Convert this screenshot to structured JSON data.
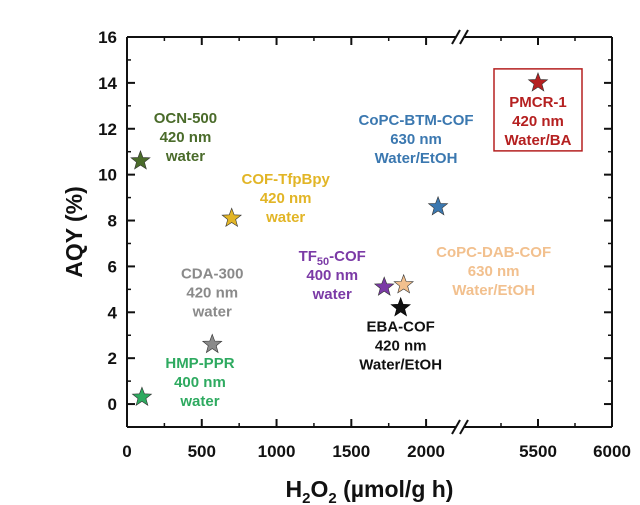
{
  "chart_data": {
    "type": "scatter",
    "xlabel": {
      "main": "H",
      "sub1": "2",
      "mid": "O",
      "sub2": "2",
      "rest": " (µmol/g h)"
    },
    "ylabel": "AQY (%)",
    "xlim_left": [
      0,
      2200
    ],
    "xlim_right": [
      5000,
      6000
    ],
    "ylim": [
      -1,
      16
    ],
    "x_ticks_left": [
      0,
      500,
      1000,
      1500,
      2000
    ],
    "x_ticks_right": [
      5500,
      6000
    ],
    "y_ticks": [
      0,
      2,
      4,
      6,
      8,
      10,
      12,
      14,
      16
    ],
    "axis_break": true,
    "grid": false,
    "points": [
      {
        "x": 90,
        "y": 10.6,
        "color": "#4a6b2a",
        "label": [
          "OCN-500",
          "420 nm",
          "water"
        ]
      },
      {
        "x": 700,
        "y": 8.1,
        "color": "#e2b526",
        "label": [
          "COF-TfpBpy",
          "420 nm",
          "water"
        ]
      },
      {
        "x": 570,
        "y": 2.6,
        "color": "#8a8a8a",
        "label": [
          "CDA-300",
          "420 nm",
          "water"
        ]
      },
      {
        "x": 100,
        "y": 0.3,
        "color": "#2eaa60",
        "label": [
          "HMP-PPR",
          "400 nm",
          "water"
        ]
      },
      {
        "x": 1720,
        "y": 5.1,
        "color": "#7b3aa6",
        "label": [
          "TF50-COF",
          "400 nm",
          "water"
        ],
        "label_sub": {
          "prefix": "TF",
          "sub": "50",
          "suffix": "-COF"
        }
      },
      {
        "x": 1830,
        "y": 4.2,
        "color": "#111111",
        "label": [
          "EBA-COF",
          "420 nm",
          "Water/EtOH"
        ]
      },
      {
        "x": 1850,
        "y": 5.2,
        "color": "#f2c08e",
        "label": [
          "CoPC-DAB-COF",
          "630 nm",
          "Water/EtOH"
        ]
      },
      {
        "x": 2080,
        "y": 8.6,
        "color": "#3b78b0",
        "label": [
          "CoPC-BTM-COF",
          "630 nm",
          "Water/EtOH"
        ]
      },
      {
        "x": 5500,
        "y": 14.0,
        "color": "#b52020",
        "label": [
          "PMCR-1",
          "420 nm",
          "Water/BA"
        ],
        "boxed": true
      }
    ]
  }
}
